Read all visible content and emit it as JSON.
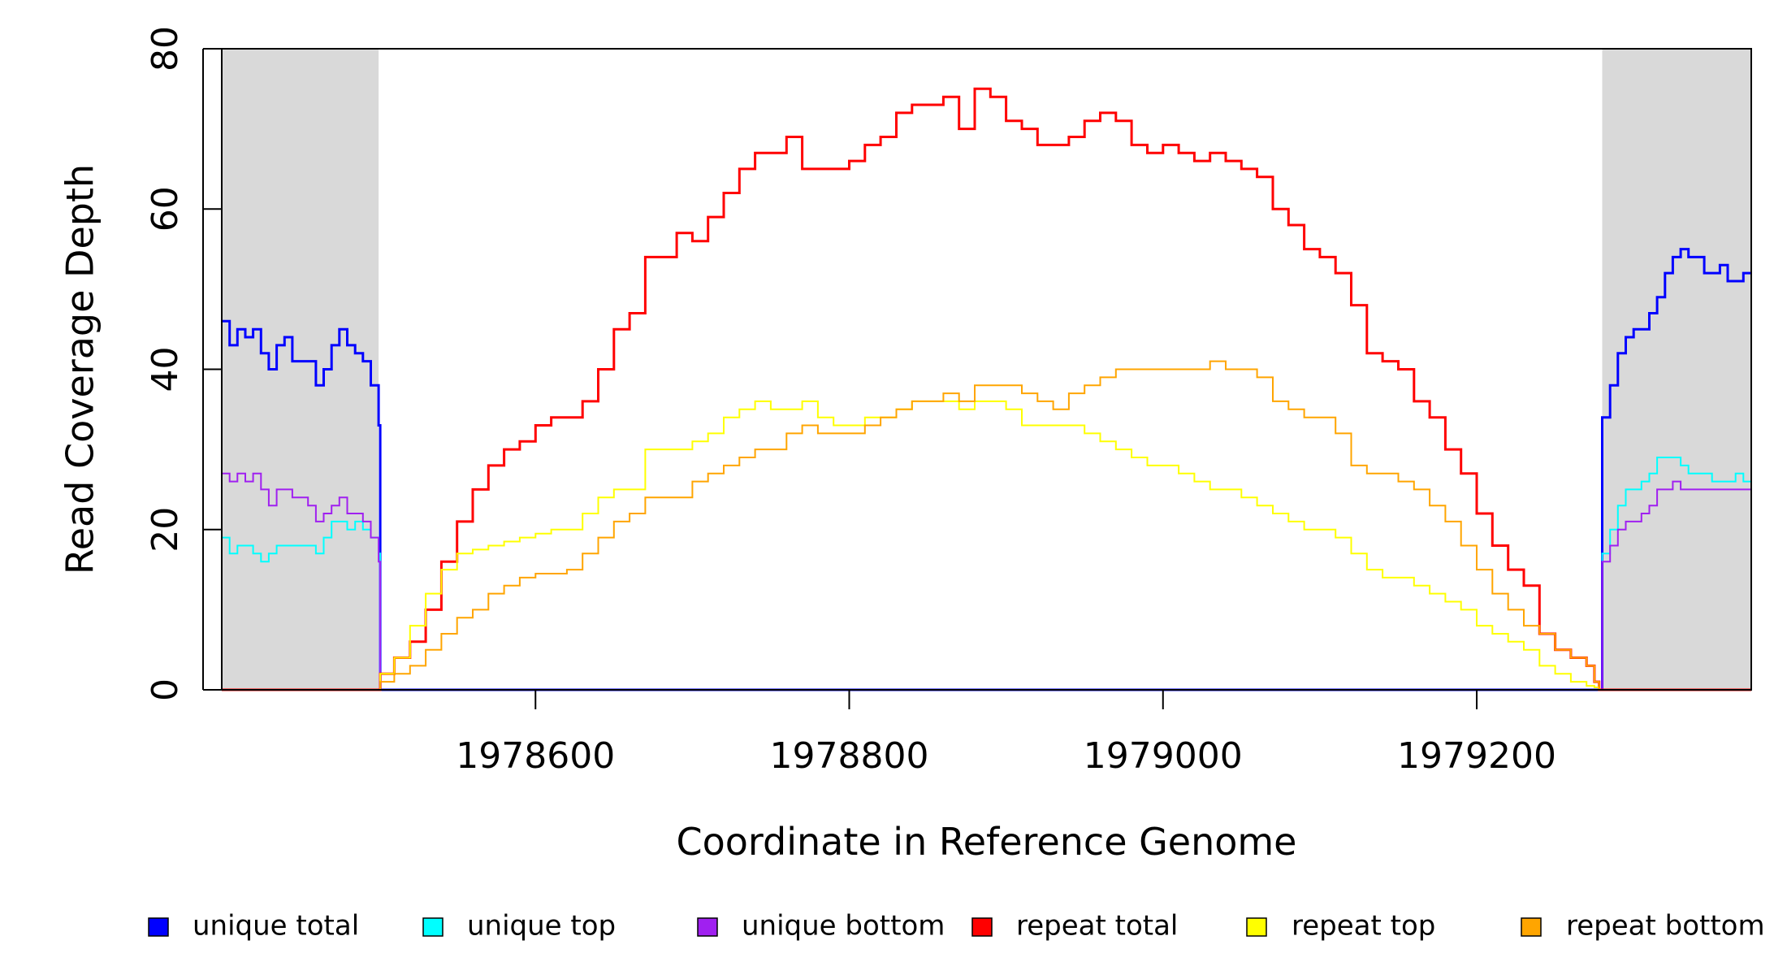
{
  "chart_data": {
    "type": "line",
    "xlabel": "Coordinate in Reference Genome",
    "ylabel": "Read Coverage Depth",
    "xlim": [
      1978400,
      1979375
    ],
    "ylim": [
      0,
      80
    ],
    "xticks": [
      1978600,
      1978800,
      1979000,
      1979200
    ],
    "yticks": [
      0,
      20,
      40,
      60,
      80
    ],
    "xtick_labels": [
      "1978600",
      "1978800",
      "1979000",
      "1979200"
    ],
    "ytick_labels": [
      "0",
      "20",
      "40",
      "60",
      "80"
    ],
    "shaded_regions": [
      [
        1978400,
        1978500
      ],
      [
        1979280,
        1979375
      ]
    ],
    "shade_color": "#d9d9d9",
    "legend_position": "bottom",
    "series": [
      {
        "name": "unique total",
        "color": "#0000ff",
        "width": 3,
        "x": [
          1978400,
          1978405,
          1978410,
          1978415,
          1978420,
          1978425,
          1978430,
          1978435,
          1978440,
          1978445,
          1978450,
          1978455,
          1978460,
          1978465,
          1978470,
          1978475,
          1978480,
          1978485,
          1978490,
          1978495,
          1978500,
          1978501,
          1979278,
          1979280,
          1979285,
          1979290,
          1979295,
          1979300,
          1979305,
          1979310,
          1979315,
          1979320,
          1979325,
          1979330,
          1979335,
          1979340,
          1979345,
          1979350,
          1979355,
          1979360,
          1979365,
          1979370,
          1979375
        ],
        "y": [
          46,
          43,
          45,
          44,
          45,
          42,
          40,
          43,
          44,
          41,
          41,
          41,
          38,
          40,
          43,
          45,
          43,
          42,
          41,
          38,
          33,
          0,
          0,
          34,
          38,
          42,
          44,
          45,
          45,
          47,
          49,
          52,
          54,
          55,
          54,
          54,
          52,
          52,
          53,
          51,
          51,
          52,
          52
        ]
      },
      {
        "name": "unique top",
        "color": "#00ffff",
        "width": 2,
        "x": [
          1978400,
          1978405,
          1978410,
          1978415,
          1978420,
          1978425,
          1978430,
          1978435,
          1978440,
          1978445,
          1978450,
          1978455,
          1978460,
          1978465,
          1978470,
          1978475,
          1978480,
          1978485,
          1978490,
          1978495,
          1978500,
          1978501,
          1979278,
          1979280,
          1979285,
          1979290,
          1979295,
          1979300,
          1979305,
          1979310,
          1979315,
          1979320,
          1979325,
          1979330,
          1979335,
          1979340,
          1979345,
          1979350,
          1979355,
          1979360,
          1979365,
          1979370,
          1979375
        ],
        "y": [
          19,
          17,
          18,
          18,
          17,
          16,
          17,
          18,
          18,
          18,
          18,
          18,
          17,
          19,
          21,
          21,
          20,
          21,
          20,
          19,
          17,
          0,
          0,
          17,
          20,
          23,
          25,
          25,
          26,
          27,
          29,
          29,
          29,
          28,
          27,
          27,
          27,
          26,
          26,
          26,
          27,
          26,
          26
        ]
      },
      {
        "name": "unique bottom",
        "color": "#a020f0",
        "width": 2,
        "x": [
          1978400,
          1978405,
          1978410,
          1978415,
          1978420,
          1978425,
          1978430,
          1978435,
          1978440,
          1978445,
          1978450,
          1978455,
          1978460,
          1978465,
          1978470,
          1978475,
          1978480,
          1978485,
          1978490,
          1978495,
          1978500,
          1978501,
          1979278,
          1979280,
          1979285,
          1979290,
          1979295,
          1979300,
          1979305,
          1979310,
          1979315,
          1979320,
          1979325,
          1979330,
          1979335,
          1979340,
          1979345,
          1979350,
          1979355,
          1979360,
          1979365,
          1979370,
          1979375
        ],
        "y": [
          27,
          26,
          27,
          26,
          27,
          25,
          23,
          25,
          25,
          24,
          24,
          23,
          21,
          22,
          23,
          24,
          22,
          22,
          21,
          19,
          16,
          0,
          0,
          16,
          18,
          20,
          21,
          21,
          22,
          23,
          25,
          25,
          26,
          25,
          25,
          25,
          25,
          25,
          25,
          25,
          25,
          25,
          26
        ]
      },
      {
        "name": "repeat total",
        "color": "#ff0000",
        "width": 3,
        "x": [
          1978400,
          1978500,
          1978501,
          1978510,
          1978520,
          1978530,
          1978540,
          1978550,
          1978560,
          1978570,
          1978580,
          1978590,
          1978600,
          1978610,
          1978620,
          1978630,
          1978640,
          1978650,
          1978660,
          1978670,
          1978680,
          1978690,
          1978700,
          1978710,
          1978720,
          1978730,
          1978740,
          1978750,
          1978760,
          1978770,
          1978780,
          1978790,
          1978800,
          1978810,
          1978820,
          1978830,
          1978840,
          1978850,
          1978860,
          1978870,
          1978880,
          1978890,
          1978900,
          1978910,
          1978920,
          1978930,
          1978940,
          1978950,
          1978960,
          1978970,
          1978980,
          1978990,
          1979000,
          1979010,
          1979020,
          1979030,
          1979040,
          1979050,
          1979060,
          1979070,
          1979080,
          1979090,
          1979100,
          1979110,
          1979120,
          1979130,
          1979140,
          1979150,
          1979160,
          1979170,
          1979180,
          1979190,
          1979200,
          1979210,
          1979220,
          1979230,
          1979240,
          1979250,
          1979260,
          1979270,
          1979275,
          1979278,
          1979280,
          1979375
        ],
        "y": [
          0,
          0,
          2,
          4,
          6,
          10,
          16,
          21,
          25,
          28,
          30,
          31,
          33,
          34,
          34,
          36,
          40,
          45,
          47,
          54,
          54,
          57,
          56,
          59,
          62,
          65,
          67,
          67,
          69,
          65,
          65,
          65,
          66,
          68,
          69,
          72,
          73,
          73,
          74,
          70,
          75,
          74,
          71,
          70,
          68,
          68,
          69,
          71,
          72,
          71,
          68,
          67,
          68,
          67,
          66,
          67,
          66,
          65,
          64,
          60,
          58,
          55,
          54,
          52,
          48,
          42,
          41,
          40,
          36,
          34,
          30,
          27,
          22,
          18,
          15,
          13,
          7,
          5,
          4,
          3,
          1,
          0,
          0,
          0
        ]
      },
      {
        "name": "repeat top",
        "color": "#ffff00",
        "width": 2,
        "x": [
          1978400,
          1978500,
          1978501,
          1978510,
          1978520,
          1978530,
          1978540,
          1978550,
          1978560,
          1978570,
          1978580,
          1978590,
          1978600,
          1978610,
          1978620,
          1978630,
          1978640,
          1978650,
          1978660,
          1978670,
          1978680,
          1978690,
          1978700,
          1978710,
          1978720,
          1978730,
          1978740,
          1978750,
          1978760,
          1978770,
          1978780,
          1978790,
          1978800,
          1978810,
          1978820,
          1978830,
          1978840,
          1978850,
          1978860,
          1978870,
          1978880,
          1978890,
          1978900,
          1978910,
          1978920,
          1978930,
          1978940,
          1978950,
          1978960,
          1978970,
          1978980,
          1978990,
          1979000,
          1979010,
          1979020,
          1979030,
          1979040,
          1979050,
          1979060,
          1979070,
          1979080,
          1979090,
          1979100,
          1979110,
          1979120,
          1979130,
          1979140,
          1979150,
          1979160,
          1979170,
          1979180,
          1979190,
          1979200,
          1979210,
          1979220,
          1979230,
          1979240,
          1979250,
          1979260,
          1979270,
          1979275,
          1979278,
          1979280,
          1979375
        ],
        "y": [
          0,
          0,
          2,
          4,
          8,
          12,
          15,
          17,
          17.5,
          18,
          18.5,
          19,
          19.5,
          20,
          20,
          22,
          24,
          25,
          25,
          30,
          30,
          30,
          31,
          32,
          34,
          35,
          36,
          35,
          35,
          36,
          34,
          33,
          33,
          34,
          34,
          35,
          36,
          36,
          36,
          35,
          36,
          36,
          35,
          33,
          33,
          33,
          33,
          32,
          31,
          30,
          29,
          28,
          28,
          27,
          26,
          25,
          25,
          24,
          23,
          22,
          21,
          20,
          20,
          19,
          17,
          15,
          14,
          14,
          13,
          12,
          11,
          10,
          8,
          7,
          6,
          5,
          3,
          2,
          1,
          0.5,
          0.3,
          0,
          0,
          0
        ]
      },
      {
        "name": "repeat bottom",
        "color": "#ffa500",
        "width": 2,
        "x": [
          1978400,
          1978500,
          1978501,
          1978510,
          1978520,
          1978530,
          1978540,
          1978550,
          1978560,
          1978570,
          1978580,
          1978590,
          1978600,
          1978610,
          1978620,
          1978630,
          1978640,
          1978650,
          1978660,
          1978670,
          1978680,
          1978690,
          1978700,
          1978710,
          1978720,
          1978730,
          1978740,
          1978750,
          1978760,
          1978770,
          1978780,
          1978790,
          1978800,
          1978810,
          1978820,
          1978830,
          1978840,
          1978850,
          1978860,
          1978870,
          1978880,
          1978890,
          1978900,
          1978910,
          1978920,
          1978930,
          1978940,
          1978950,
          1978960,
          1978970,
          1978980,
          1978990,
          1979000,
          1979010,
          1979020,
          1979030,
          1979040,
          1979050,
          1979060,
          1979070,
          1979080,
          1979090,
          1979100,
          1979110,
          1979120,
          1979130,
          1979140,
          1979150,
          1979160,
          1979170,
          1979180,
          1979190,
          1979200,
          1979210,
          1979220,
          1979230,
          1979240,
          1979250,
          1979260,
          1979270,
          1979275,
          1979278,
          1979280,
          1979375
        ],
        "y": [
          0,
          0,
          1,
          2,
          3,
          5,
          7,
          9,
          10,
          12,
          13,
          14,
          14.5,
          14.5,
          15,
          17,
          19,
          21,
          22,
          24,
          24,
          24,
          26,
          27,
          28,
          29,
          30,
          30,
          32,
          33,
          32,
          32,
          32,
          33,
          34,
          35,
          36,
          36,
          37,
          36,
          38,
          38,
          38,
          37,
          36,
          35,
          37,
          38,
          39,
          40,
          40,
          40,
          40,
          40,
          40,
          41,
          40,
          40,
          39,
          36,
          35,
          34,
          34,
          32,
          28,
          27,
          27,
          26,
          25,
          23,
          21,
          18,
          15,
          12,
          10,
          8,
          7,
          5,
          4,
          3,
          1,
          0,
          0,
          0
        ]
      }
    ]
  }
}
